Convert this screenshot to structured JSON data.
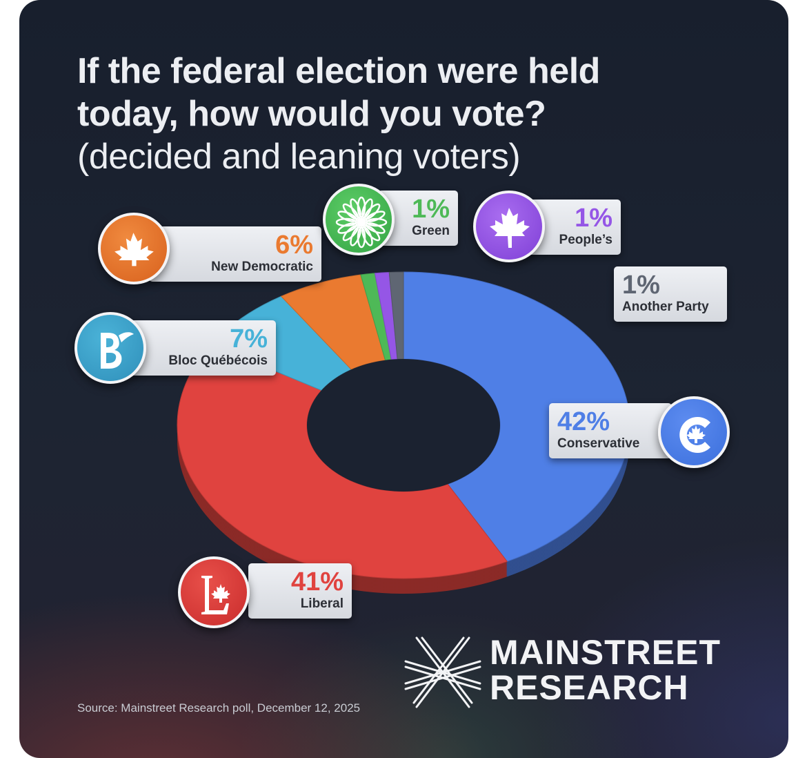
{
  "title": {
    "line1": "If the federal election were held",
    "line2": "today, how would you vote?",
    "line3": "(decided and leaning voters)"
  },
  "chart_data": {
    "type": "pie",
    "style": "donut",
    "title": "If the federal election were held today, how would you vote? (decided and leaning voters)",
    "unit": "%",
    "categories": [
      "Conservative",
      "Liberal",
      "Bloc Québécois",
      "New Democratic",
      "Green",
      "People's",
      "Another Party"
    ],
    "values": [
      42,
      41,
      7,
      6,
      1,
      1,
      1
    ],
    "colors": [
      "#4f7fe6",
      "#e0433f",
      "#47b2d8",
      "#ea7a30",
      "#4eb957",
      "#9556e6",
      "#5f6673"
    ]
  },
  "labels": {
    "conservative": {
      "pct": "42%",
      "name": "Conservative"
    },
    "liberal": {
      "pct": "41%",
      "name": "Liberal"
    },
    "bloc": {
      "pct": "7%",
      "name": "Bloc Québécois"
    },
    "ndp": {
      "pct": "6%",
      "name": "New Democratic"
    },
    "green": {
      "pct": "1%",
      "name": "Green"
    },
    "peoples": {
      "pct": "1%",
      "name": "People’s"
    },
    "other": {
      "pct": "1%",
      "name": "Another Party"
    }
  },
  "brand": {
    "line1": "MAINSTREET",
    "line2": "RESEARCH"
  },
  "source": "Source: Mainstreet Research poll, December 12, 2025"
}
